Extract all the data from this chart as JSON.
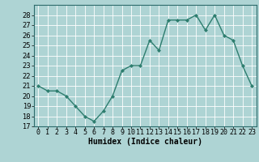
{
  "x": [
    0,
    1,
    2,
    3,
    4,
    5,
    6,
    7,
    8,
    9,
    10,
    11,
    12,
    13,
    14,
    15,
    16,
    17,
    18,
    19,
    20,
    21,
    22,
    23
  ],
  "y": [
    21,
    20.5,
    20.5,
    20,
    19,
    18,
    17.5,
    18.5,
    20,
    22.5,
    23,
    23,
    25.5,
    24.5,
    27.5,
    27.5,
    27.5,
    28,
    26.5,
    28,
    26,
    25.5,
    23,
    21
  ],
  "line_color": "#2d7d6e",
  "marker": "D",
  "markersize": 2,
  "linewidth": 1.0,
  "bg_color": "#aed4d4",
  "grid_color": "#ffffff",
  "xlabel": "Humidex (Indice chaleur)",
  "ylim": [
    17,
    29
  ],
  "xlim": [
    -0.5,
    23.5
  ],
  "yticks": [
    17,
    18,
    19,
    20,
    21,
    22,
    23,
    24,
    25,
    26,
    27,
    28
  ],
  "xtick_labels": [
    "0",
    "1",
    "2",
    "3",
    "4",
    "5",
    "6",
    "7",
    "8",
    "9",
    "10",
    "11",
    "12",
    "13",
    "14",
    "15",
    "16",
    "17",
    "18",
    "19",
    "20",
    "21",
    "22",
    "23"
  ],
  "xlabel_fontsize": 7,
  "tick_fontsize": 6
}
